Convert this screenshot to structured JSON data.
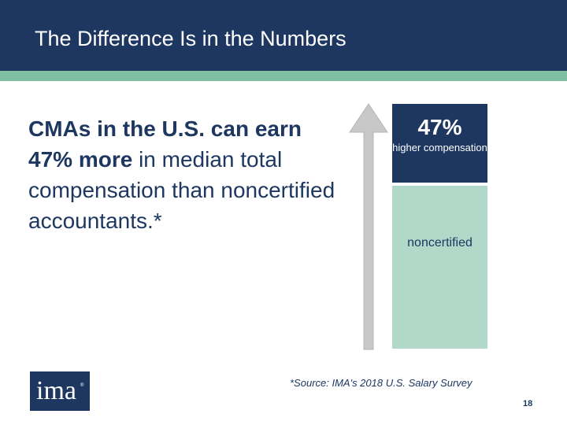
{
  "header": {
    "title": "The Difference Is in the Numbers"
  },
  "body": {
    "part1": "CMAs in the U.S. can earn 47% more",
    "part2": " in median total compensation than noncertified accountants.*"
  },
  "graphic": {
    "top_value": "47%",
    "top_label": "higher compensation",
    "bottom_label": "noncertified"
  },
  "source": "*Source: IMA's 2018 U.S. Salary Survey",
  "logo": {
    "text": "ima",
    "mark": "®"
  },
  "page_number": "18",
  "colors": {
    "navy": "#1d3760",
    "stripe": "#7fbfa3",
    "light_bar": "#b2d8c9",
    "arrow": "#c8c8c8"
  }
}
